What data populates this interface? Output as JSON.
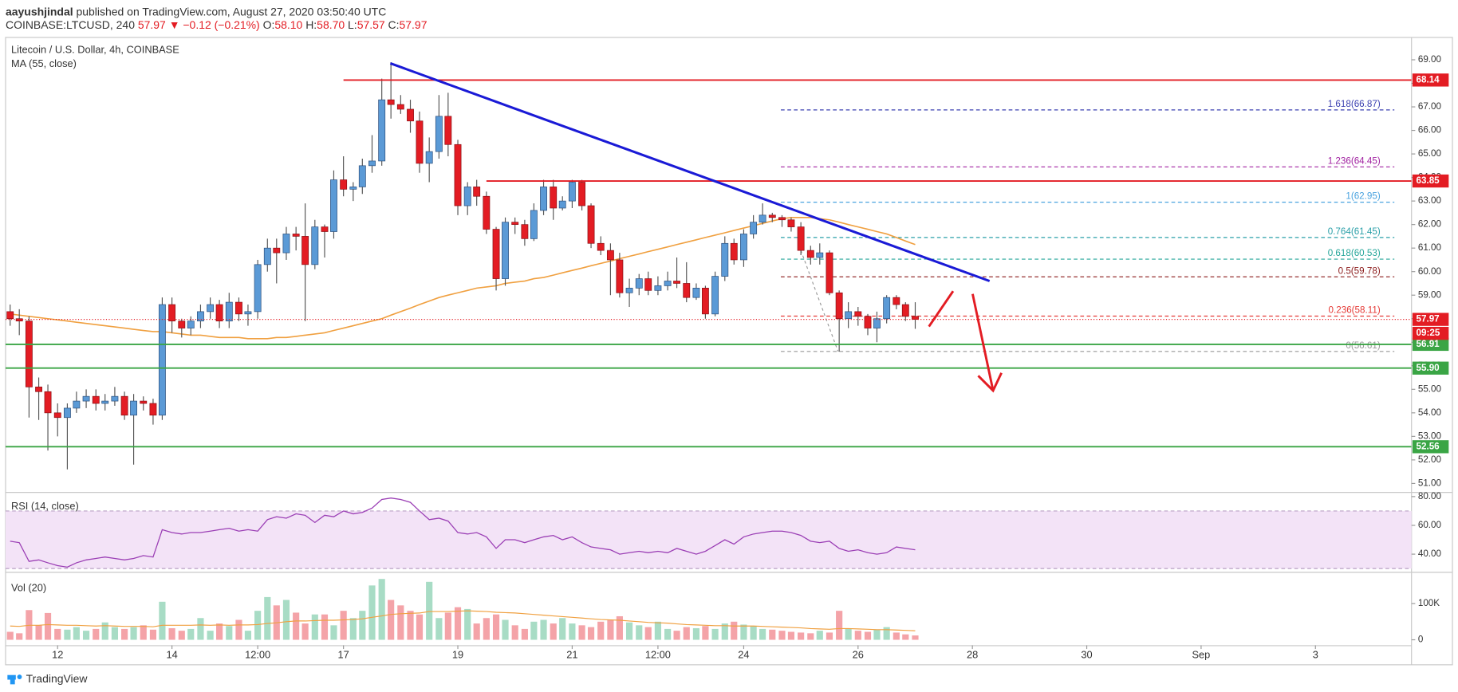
{
  "header": {
    "author": "aayushjindal",
    "published": "published on TradingView.com, August 27, 2020 03:50:40 UTC",
    "symbol": "COINBASE:LTCUSD, 240",
    "change": "57.97 ▼ −0.12 (−0.21%)",
    "ohlc": [
      {
        "key": "O:",
        "value": "58.10"
      },
      {
        "key": "H:",
        "value": "58.70"
      },
      {
        "key": "L:",
        "value": "57.57"
      },
      {
        "key": "C:",
        "value": "57.97"
      }
    ]
  },
  "footer": "TradingView",
  "chart_data": {
    "type": "candlestick",
    "title": "Litecoin / U.S. Dollar, 4h, COINBASE",
    "x": [
      11.17,
      11.33,
      11.5,
      11.67,
      11.83,
      12,
      12.17,
      12.33,
      12.5,
      12.67,
      12.83,
      13,
      13.17,
      13.33,
      13.5,
      13.67,
      13.83,
      14,
      14.17,
      14.33,
      14.5,
      14.67,
      14.83,
      15,
      15.17,
      15.33,
      15.5,
      15.67,
      15.83,
      16,
      16.17,
      16.33,
      16.5,
      16.67,
      16.83,
      17,
      17.17,
      17.33,
      17.5,
      17.67,
      17.83,
      18,
      18.17,
      18.33,
      18.5,
      18.67,
      18.83,
      19,
      19.17,
      19.33,
      19.5,
      19.67,
      19.83,
      20,
      20.17,
      20.33,
      20.5,
      20.67,
      20.83,
      21,
      21.17,
      21.33,
      21.5,
      21.67,
      21.83,
      22,
      22.17,
      22.33,
      22.5,
      22.67,
      22.83,
      23,
      23.17,
      23.33,
      23.5,
      23.67,
      23.83,
      24,
      24.17,
      24.33,
      24.5,
      24.67,
      24.83,
      25,
      25.17,
      25.33,
      25.5,
      25.67,
      25.83,
      26,
      26.17,
      26.33,
      26.5,
      26.67,
      26.83,
      27
    ],
    "xlim": [
      11.09,
      35.68
    ],
    "xticks": [
      12,
      14,
      {
        "value": 15.5,
        "label": "12:00"
      },
      17,
      19,
      21,
      {
        "value": 22.5,
        "label": "12:00"
      },
      24,
      26,
      28,
      30,
      {
        "value": 32,
        "label": "Sep"
      },
      {
        "value": 34,
        "label": "3"
      }
    ],
    "open": [
      58.3,
      58.0,
      57.9,
      55.1,
      54.9,
      54.0,
      53.8,
      54.2,
      54.5,
      54.7,
      54.4,
      54.5,
      54.7,
      53.9,
      54.5,
      54.4,
      53.9,
      58.6,
      57.9,
      57.6,
      57.9,
      58.3,
      58.6,
      57.9,
      58.7,
      58.2,
      58.3,
      60.3,
      61.0,
      60.8,
      61.6,
      61.5,
      60.3,
      61.9,
      61.7,
      63.9,
      63.5,
      63.6,
      64.5,
      64.7,
      67.3,
      67.1,
      66.9,
      66.4,
      64.6,
      65.1,
      66.6,
      65.4,
      62.8,
      63.6,
      63.2,
      61.8,
      59.7,
      62.1,
      62.0,
      61.4,
      62.6,
      63.6,
      62.7,
      63.0,
      63.8,
      62.8,
      61.2,
      60.9,
      60.5,
      59.1,
      59.3,
      59.7,
      59.2,
      59.4,
      59.6,
      59.5,
      58.9,
      59.3,
      58.2,
      59.8,
      61.2,
      60.5,
      61.6,
      62.1,
      62.4,
      62.3,
      62.2,
      61.9,
      60.9,
      60.6,
      60.8,
      59.1,
      58.0,
      58.3,
      58.1,
      57.6,
      58.0,
      58.9,
      58.6,
      58.1
    ],
    "high": [
      58.6,
      58.4,
      58.1,
      55.5,
      55.2,
      54.4,
      54.4,
      54.9,
      55.0,
      55.0,
      54.8,
      55.1,
      54.9,
      54.8,
      54.7,
      54.6,
      58.9,
      58.9,
      58.0,
      58.1,
      58.6,
      58.9,
      58.8,
      59.1,
      58.9,
      58.6,
      60.5,
      61.4,
      61.4,
      61.9,
      61.9,
      62.9,
      62.2,
      62.0,
      64.3,
      64.9,
      63.8,
      64.8,
      65.8,
      68.2,
      68.9,
      67.5,
      67.3,
      66.8,
      65.7,
      67.5,
      67.6,
      65.6,
      63.8,
      63.9,
      63.4,
      61.9,
      62.3,
      62.3,
      62.2,
      62.9,
      63.9,
      63.9,
      63.2,
      63.9,
      63.9,
      62.9,
      61.5,
      61.2,
      60.8,
      59.7,
      59.9,
      60.0,
      59.8,
      60.0,
      60.6,
      60.4,
      59.5,
      59.4,
      60.0,
      61.5,
      61.4,
      61.8,
      62.4,
      62.9,
      62.5,
      62.4,
      62.3,
      62.1,
      61.1,
      61.2,
      60.9,
      59.2,
      58.7,
      58.5,
      58.2,
      58.3,
      59.0,
      59.0,
      58.7,
      58.7
    ],
    "low": [
      57.7,
      57.3,
      53.8,
      53.7,
      52.4,
      53.0,
      51.6,
      54.0,
      54.2,
      54.1,
      54.1,
      54.3,
      53.7,
      51.8,
      54.1,
      53.5,
      53.7,
      57.4,
      57.2,
      57.3,
      57.6,
      58.0,
      57.6,
      57.6,
      57.9,
      57.7,
      58.0,
      60.0,
      59.5,
      60.5,
      60.9,
      57.9,
      60.1,
      60.6,
      61.4,
      63.2,
      63.0,
      63.3,
      64.2,
      64.5,
      66.5,
      66.7,
      65.9,
      64.2,
      63.8,
      64.8,
      64.9,
      62.4,
      62.4,
      62.8,
      61.6,
      59.2,
      59.4,
      61.6,
      61.1,
      61.3,
      62.4,
      62.2,
      62.6,
      62.7,
      62.6,
      61.0,
      60.7,
      59.0,
      58.9,
      58.5,
      59.0,
      59.0,
      59.0,
      59.2,
      59.3,
      58.7,
      58.8,
      58.0,
      58.1,
      59.6,
      60.3,
      60.2,
      61.4,
      62.0,
      62.1,
      61.9,
      61.7,
      60.7,
      60.3,
      60.3,
      59.0,
      56.6,
      57.6,
      57.7,
      57.3,
      57.0,
      57.8,
      58.4,
      57.9,
      57.57
    ],
    "close": [
      58.0,
      57.9,
      55.1,
      54.9,
      54.0,
      53.8,
      54.2,
      54.5,
      54.7,
      54.4,
      54.5,
      54.7,
      53.9,
      54.5,
      54.4,
      53.9,
      58.6,
      57.9,
      57.6,
      57.9,
      58.3,
      58.6,
      57.9,
      58.7,
      58.2,
      58.3,
      60.3,
      61.0,
      60.8,
      61.6,
      61.5,
      60.3,
      61.9,
      61.7,
      63.9,
      63.5,
      63.6,
      64.5,
      64.7,
      67.3,
      67.1,
      66.9,
      66.4,
      64.6,
      65.1,
      66.6,
      65.4,
      62.8,
      63.6,
      63.2,
      61.8,
      59.7,
      62.1,
      62.0,
      61.4,
      62.6,
      63.6,
      62.7,
      63.0,
      63.8,
      62.8,
      61.2,
      60.9,
      60.5,
      59.1,
      59.3,
      59.7,
      59.2,
      59.4,
      59.6,
      59.5,
      58.9,
      59.3,
      58.2,
      59.8,
      61.2,
      60.5,
      61.6,
      62.1,
      62.4,
      62.3,
      62.2,
      61.9,
      60.9,
      60.6,
      60.8,
      59.1,
      58.0,
      58.3,
      58.1,
      57.6,
      58.0,
      58.9,
      58.6,
      58.1,
      57.97
    ],
    "up_color": "#5b9ad6",
    "down_color": "#e31c23",
    "ylim": [
      50.64,
      69.95
    ],
    "yticks": [
      {
        "value": 69,
        "label": "69.00"
      },
      {
        "value": 68,
        "label": "68.00"
      },
      {
        "value": 67,
        "label": "67.00"
      },
      {
        "value": 66,
        "label": "66.00"
      },
      {
        "value": 65,
        "label": "65.00"
      },
      {
        "value": 64,
        "label": "64.00"
      },
      {
        "value": 63,
        "label": "63.00"
      },
      {
        "value": 62,
        "label": "62.00"
      },
      {
        "value": 61,
        "label": "61.00"
      },
      {
        "value": 60,
        "label": "60.00"
      },
      {
        "value": 59,
        "label": "59.00"
      },
      {
        "value": 58,
        "label": "58.00"
      },
      {
        "value": 57,
        "label": "57.00"
      },
      {
        "value": 56,
        "label": "56.00"
      },
      {
        "value": 55,
        "label": "55.00"
      },
      {
        "value": 54,
        "label": "54.00"
      },
      {
        "value": 53,
        "label": "53.00"
      },
      {
        "value": 52,
        "label": "52.00"
      },
      {
        "value": 51,
        "label": "51.00"
      }
    ],
    "ma": {
      "name": "MA (55, close)",
      "color": "#f0a040",
      "values": [
        58.2,
        58.15,
        58.1,
        58.05,
        58.0,
        57.95,
        57.9,
        57.85,
        57.8,
        57.75,
        57.7,
        57.65,
        57.6,
        57.55,
        57.5,
        57.45,
        57.45,
        57.4,
        57.35,
        57.3,
        57.3,
        57.25,
        57.2,
        57.2,
        57.2,
        57.15,
        57.15,
        57.15,
        57.2,
        57.2,
        57.25,
        57.3,
        57.35,
        57.4,
        57.5,
        57.6,
        57.7,
        57.8,
        57.9,
        58.0,
        58.15,
        58.3,
        58.45,
        58.6,
        58.75,
        58.9,
        59.0,
        59.1,
        59.2,
        59.3,
        59.35,
        59.4,
        59.5,
        59.55,
        59.6,
        59.7,
        59.75,
        59.85,
        59.95,
        60.05,
        60.15,
        60.25,
        60.35,
        60.45,
        60.55,
        60.65,
        60.75,
        60.85,
        60.95,
        61.05,
        61.15,
        61.25,
        61.35,
        61.45,
        61.55,
        61.65,
        61.75,
        61.85,
        61.95,
        62.05,
        62.15,
        62.25,
        62.3,
        62.3,
        62.3,
        62.25,
        62.2,
        62.1,
        62.0,
        61.9,
        61.8,
        61.7,
        61.6,
        61.45,
        61.3,
        61.15
      ]
    },
    "last_price": {
      "value": 57.97,
      "label": "57.97",
      "countdown": "09:25",
      "color": "#e31c23"
    },
    "levels": [
      {
        "value": 68.14,
        "label": "68.14",
        "color": "#e31c23",
        "from": 17.0
      },
      {
        "value": 63.85,
        "label": "63.85",
        "color": "#e31c23",
        "from": 19.5
      },
      {
        "value": 56.91,
        "label": "56.91",
        "color": "#3aa545"
      },
      {
        "value": 55.9,
        "label": "55.90",
        "color": "#3aa545"
      },
      {
        "value": 52.56,
        "label": "52.56",
        "color": "#3aa545"
      }
    ],
    "trendline": {
      "color": "#1a1ad6",
      "x": [
        17.82,
        28.3
      ],
      "y": [
        68.85,
        59.6
      ]
    },
    "fib": {
      "from": 24.65,
      "to": 35.38,
      "anchor": {
        "x": [
          25.0,
          25.65
        ],
        "y": [
          60.9,
          56.61
        ]
      },
      "levels": [
        {
          "value": 66.87,
          "label": "1.618(66.87)",
          "color": "#3a3fb0"
        },
        {
          "value": 64.45,
          "label": "1.236(64.45)",
          "color": "#a020a0"
        },
        {
          "value": 62.95,
          "label": "1(62.95)",
          "color": "#4aa3df"
        },
        {
          "value": 61.45,
          "label": "0.764(61.45)",
          "color": "#2a9fa8"
        },
        {
          "value": 60.53,
          "label": "0.618(60.53)",
          "color": "#26a69a"
        },
        {
          "value": 59.78,
          "label": "0.5(59.78)",
          "color": "#8b1a1a"
        },
        {
          "value": 58.11,
          "label": "0.236(58.11)",
          "color": "#e53935"
        },
        {
          "value": 56.61,
          "label": "0(56.61)",
          "color": "#999999"
        }
      ]
    },
    "rsi": {
      "name": "RSI (14, close)",
      "color": "#9b3fb5",
      "values": [
        49,
        48,
        35,
        36,
        34,
        32,
        31,
        34,
        36,
        37,
        38,
        37,
        36,
        37,
        39,
        38,
        57,
        55,
        54,
        55,
        55,
        56,
        57,
        58,
        56,
        57,
        56,
        64,
        66,
        65,
        68,
        67,
        62,
        67,
        66,
        70,
        68,
        69,
        72,
        78,
        79,
        78,
        76,
        70,
        64,
        65,
        63,
        55,
        54,
        55,
        52,
        44,
        50,
        50,
        48,
        50,
        52,
        53,
        50,
        52,
        48,
        45,
        44,
        43,
        40,
        41,
        42,
        41,
        42,
        41,
        44,
        42,
        40,
        42,
        46,
        50,
        47,
        52,
        54,
        55,
        56,
        56,
        55,
        53,
        49,
        48,
        49,
        44,
        42,
        43,
        41,
        40,
        41,
        45,
        44,
        43
      ],
      "band": [
        70,
        30
      ],
      "ylim": [
        27.7,
        82.6
      ],
      "yticks": [
        {
          "value": 80,
          "label": "80.00"
        },
        {
          "value": 60,
          "label": "60.00"
        },
        {
          "value": 40,
          "label": "40.00"
        }
      ]
    },
    "volume": {
      "name": "Vol (20)",
      "up_color": "#a8dcc5",
      "down_color": "#f4a3a8",
      "ma_color": "#f0a040",
      "values": [
        22000,
        18000,
        82000,
        40000,
        74000,
        30000,
        28000,
        35000,
        25000,
        30000,
        48000,
        35000,
        30000,
        35000,
        40000,
        28000,
        105000,
        32000,
        25000,
        30000,
        60000,
        25000,
        45000,
        38000,
        55000,
        25000,
        80000,
        118000,
        95000,
        110000,
        75000,
        45000,
        70000,
        70000,
        40000,
        80000,
        60000,
        80000,
        150000,
        168000,
        110000,
        95000,
        80000,
        70000,
        160000,
        60000,
        75000,
        90000,
        85000,
        45000,
        60000,
        70000,
        55000,
        40000,
        30000,
        50000,
        55000,
        45000,
        60000,
        45000,
        40000,
        35000,
        50000,
        55000,
        65000,
        48000,
        40000,
        35000,
        50000,
        30000,
        25000,
        35000,
        32000,
        38000,
        30000,
        45000,
        50000,
        42000,
        38000,
        30000,
        28000,
        25000,
        22000,
        20000,
        18000,
        25000,
        20000,
        80000,
        30000,
        25000,
        22000,
        28000,
        35000,
        20000,
        15000,
        12000
      ],
      "ma": [
        38000,
        37000,
        40000,
        40000,
        42000,
        41000,
        40000,
        40000,
        39000,
        38000,
        39000,
        38000,
        37000,
        37000,
        37000,
        36000,
        40000,
        40000,
        40000,
        40000,
        41000,
        40000,
        41000,
        40000,
        41000,
        41000,
        42000,
        45000,
        47000,
        50000,
        52000,
        52000,
        53000,
        54000,
        54000,
        55000,
        56000,
        58000,
        62000,
        66000,
        70000,
        72000,
        73000,
        74000,
        78000,
        78000,
        78000,
        79000,
        80000,
        79000,
        78000,
        76000,
        75000,
        74000,
        72000,
        70000,
        68000,
        66000,
        64000,
        62000,
        60000,
        58000,
        56000,
        55000,
        54000,
        52000,
        50000,
        48000,
        47000,
        46000,
        44000,
        42000,
        41000,
        40000,
        39000,
        39000,
        38000,
        38000,
        38000,
        37000,
        36000,
        35000,
        34000,
        33000,
        31000,
        30000,
        29000,
        31000,
        31000,
        30000,
        29000,
        28000,
        28000,
        27000,
        26000,
        25000
      ],
      "ylim": [
        -10000,
        185000
      ],
      "yticks": [
        0,
        {
          "value": 100000,
          "label": "100K"
        }
      ]
    }
  }
}
